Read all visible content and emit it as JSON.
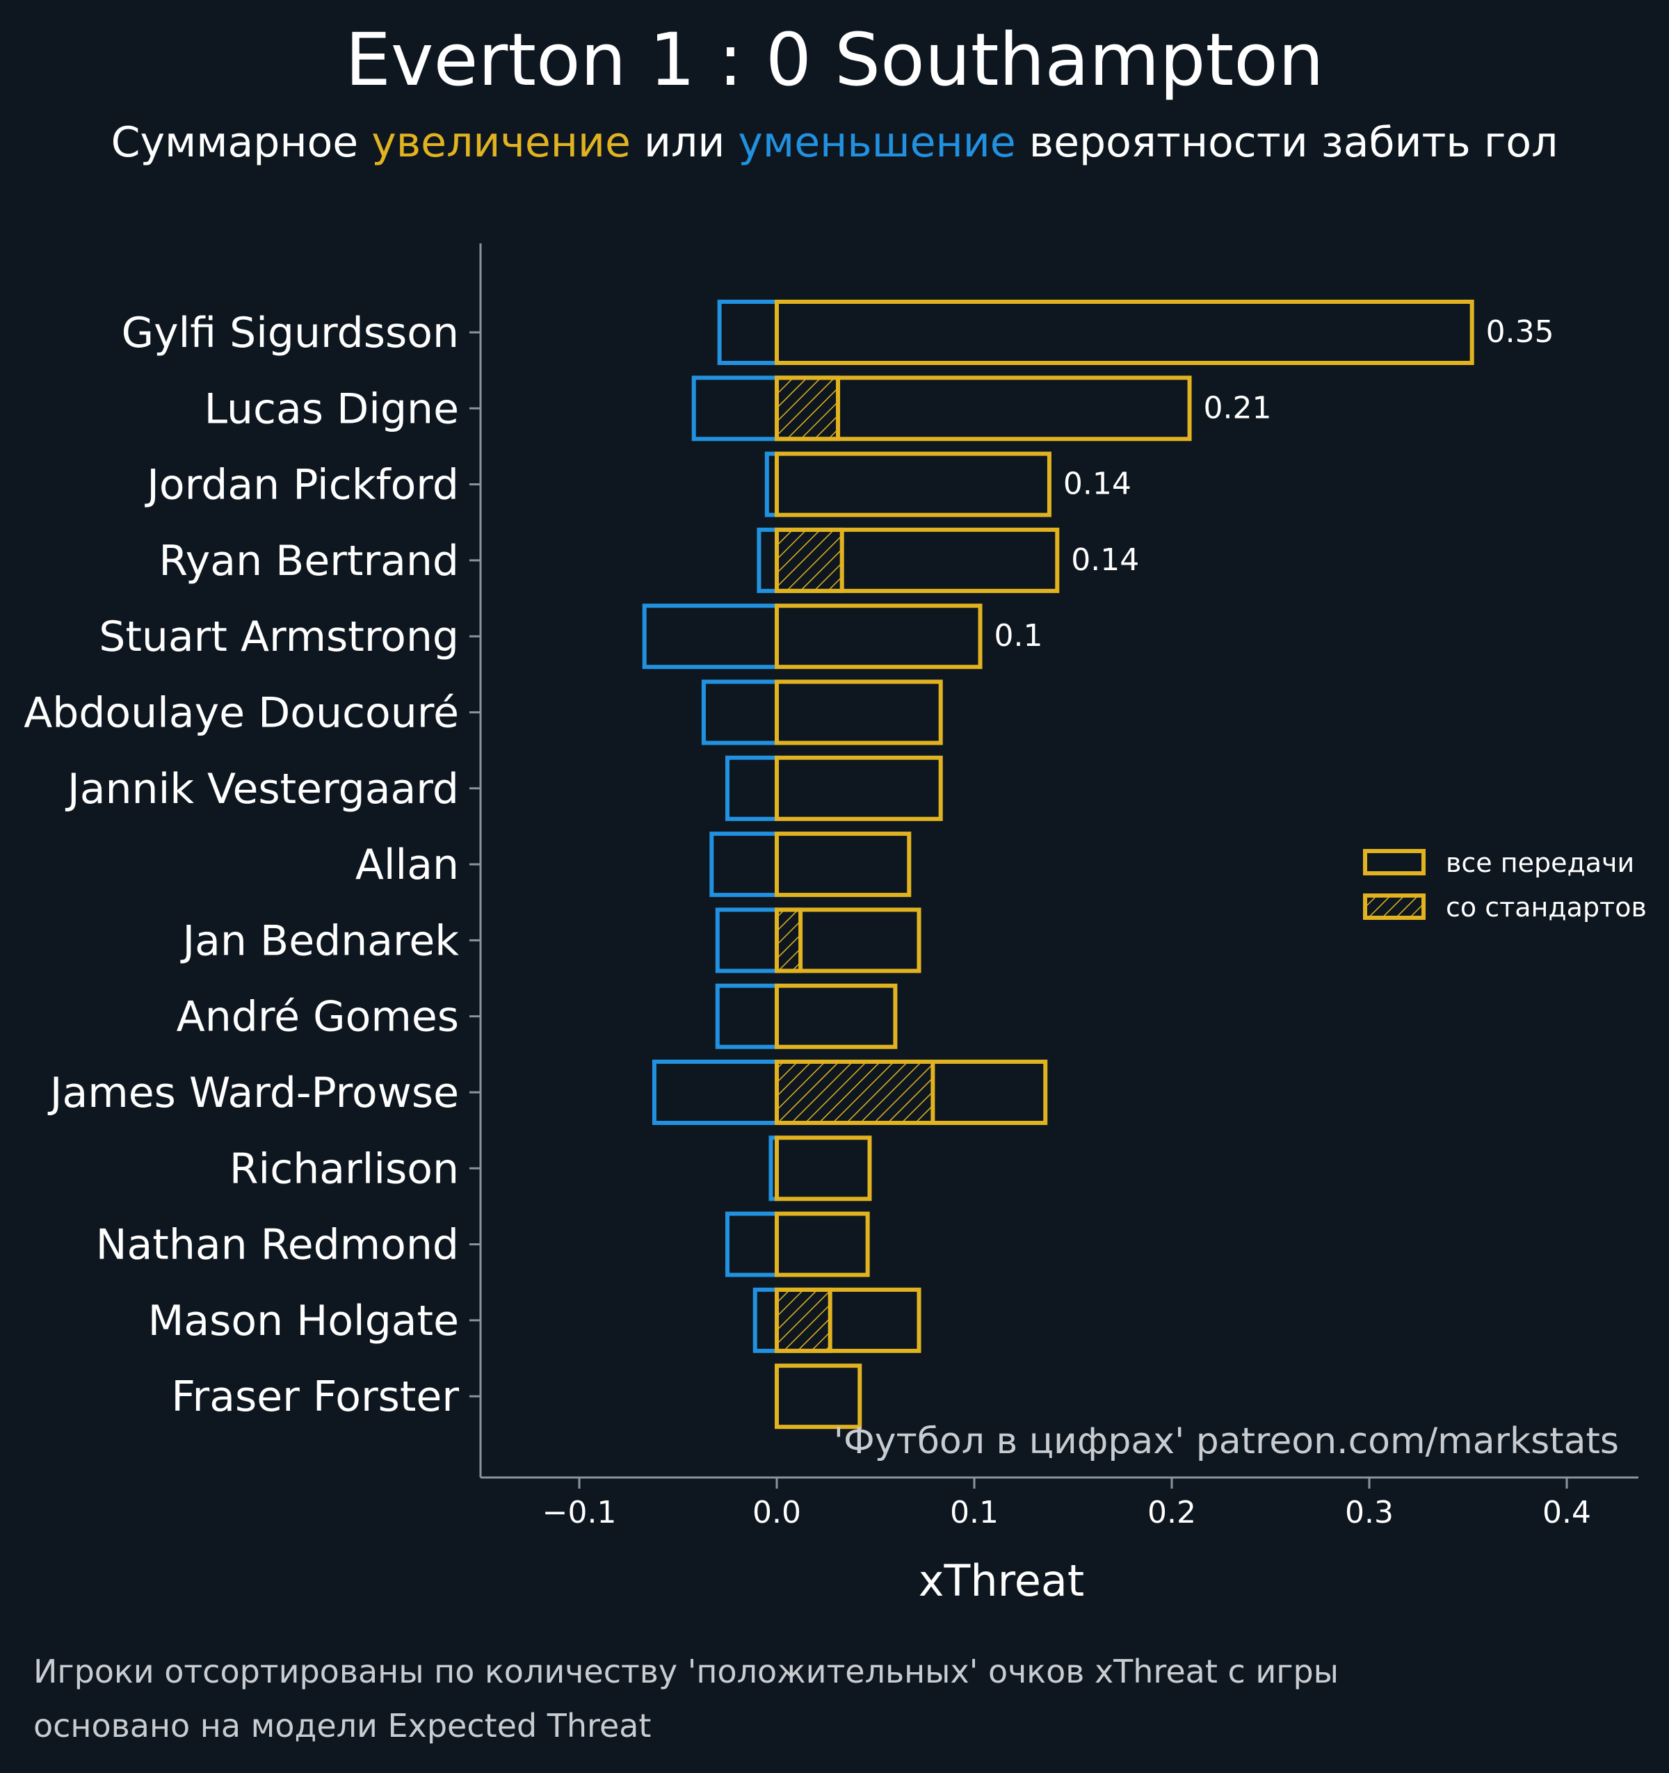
{
  "title": "Everton 1 : 0 Southampton",
  "subtitle": {
    "prefix": "Суммарное ",
    "increase": "увеличение",
    "middle": " или ",
    "decrease": "уменьшение",
    "suffix": " вероятности забить гол"
  },
  "colors": {
    "background": "#0e1720",
    "positive": "#e2b320",
    "negative": "#2191e0",
    "text": "#ffffff",
    "muted": "#c9cdd1",
    "axis": "#8a949c"
  },
  "watermark": "'Футбол в цифрах' patreon.com/markstats",
  "footnotes": [
    "Игроки отсортированы по количеству 'положительных' очков xThreat с игры",
    "основано на модели Expected Threat"
  ],
  "chart_data": {
    "type": "bar",
    "orientation": "horizontal",
    "xlabel": "xThreat",
    "xlim": [
      -0.15,
      0.435
    ],
    "xticks": [
      -0.1,
      0.0,
      0.1,
      0.2,
      0.3,
      0.4
    ],
    "xtick_labels": [
      "−0.1",
      "0.0",
      "0.1",
      "0.2",
      "0.3",
      "0.4"
    ],
    "legend_position": "center-right",
    "legend": [
      {
        "label": "все передачи",
        "style": "outline"
      },
      {
        "label": "со стандартов",
        "style": "hatched"
      }
    ],
    "categories": [
      "Gylfi Sigurdsson",
      "Lucas Digne",
      "Jordan Pickford",
      "Ryan Bertrand",
      "Stuart Armstrong",
      "Abdoulaye Doucouré",
      "Jannik Vestergaard",
      "Allan",
      "Jan Bednarek",
      "André Gomes",
      "James Ward-Prowse",
      "Richarlison",
      "Nathan Redmond",
      "Mason Holgate",
      "Fraser Forster"
    ],
    "series": [
      {
        "name": "все передачи (положительные)",
        "values": [
          0.352,
          0.209,
          0.138,
          0.142,
          0.103,
          0.083,
          0.083,
          0.067,
          0.072,
          0.06,
          0.136,
          0.047,
          0.046,
          0.072,
          0.042
        ]
      },
      {
        "name": "все передачи (отрицательные)",
        "values": [
          -0.029,
          -0.042,
          -0.005,
          -0.009,
          -0.067,
          -0.037,
          -0.025,
          -0.033,
          -0.03,
          -0.03,
          -0.062,
          -0.003,
          -0.025,
          -0.011,
          0.0
        ]
      },
      {
        "name": "со стандартов",
        "values": [
          0.0,
          0.031,
          0.0,
          0.033,
          0.0,
          0.0,
          0.0,
          0.0,
          0.012,
          0.0,
          0.079,
          0.0,
          0.0,
          0.027,
          0.0
        ]
      }
    ],
    "value_labels": [
      "0.35",
      "0.21",
      "0.14",
      "0.14",
      "0.1",
      "",
      "",
      "",
      "",
      "",
      "",
      "",
      "",
      "",
      ""
    ]
  }
}
